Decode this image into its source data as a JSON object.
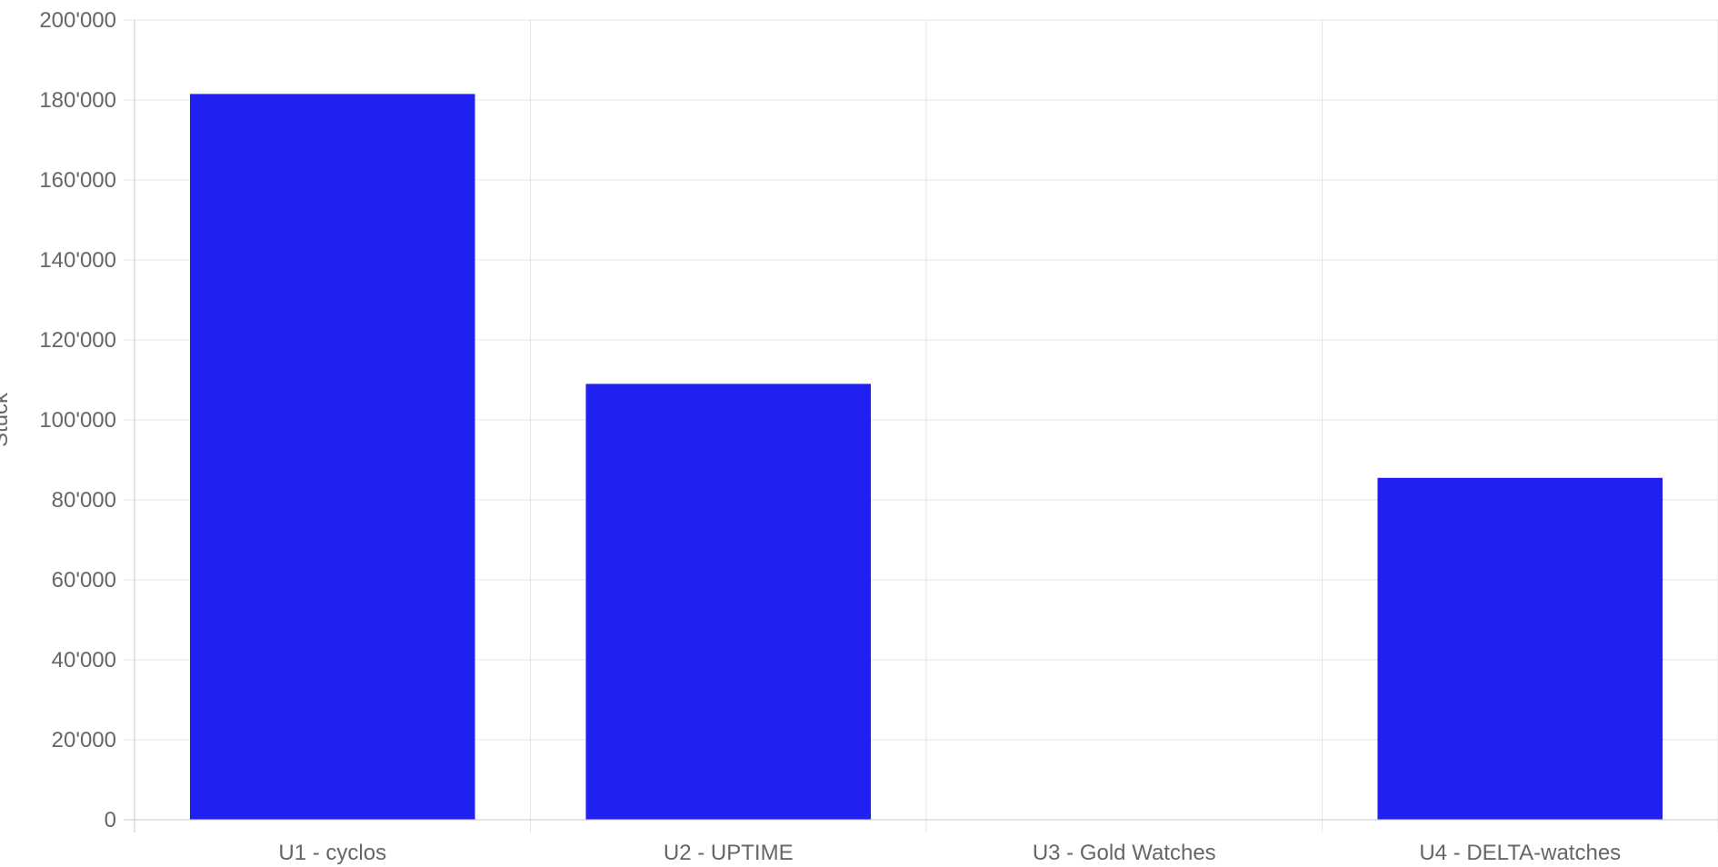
{
  "chart_data": {
    "type": "bar",
    "title": "",
    "xlabel": "",
    "ylabel": "Stück",
    "categories": [
      "U1 - cyclos",
      "U2 - UPTIME",
      "U3 - Gold Watches",
      "U4 - DELTA-watches"
    ],
    "values": [
      181500,
      109000,
      0,
      85500
    ],
    "ylim": [
      0,
      200000
    ],
    "yticks": [
      "0",
      "20'000",
      "40'000",
      "60'000",
      "80'000",
      "100'000",
      "120'000",
      "140'000",
      "160'000",
      "180'000",
      "200'000"
    ],
    "grid": true,
    "legend": "none",
    "bar_color": "#2020f0"
  }
}
